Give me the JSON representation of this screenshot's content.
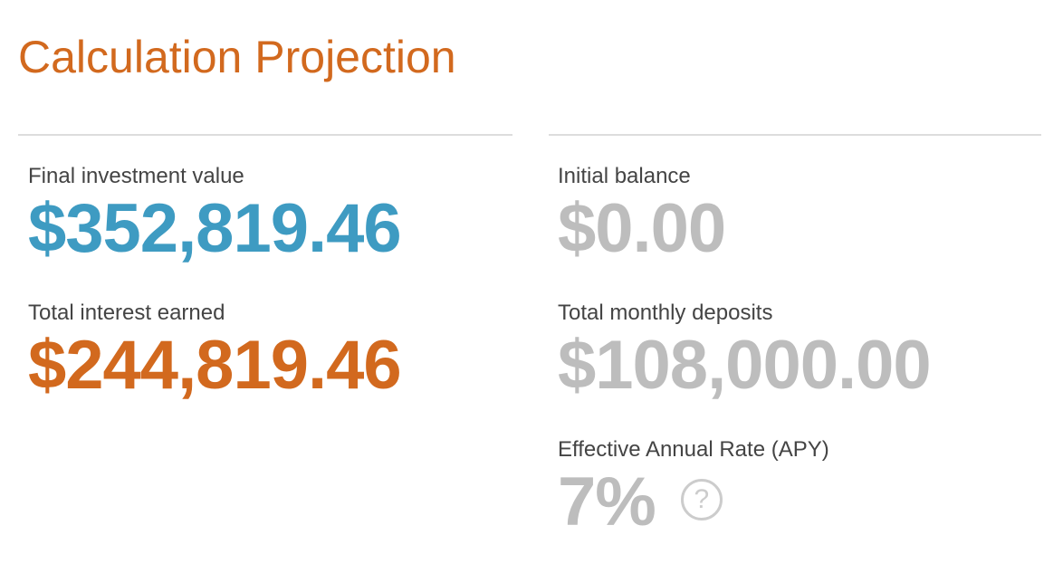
{
  "header": {
    "title": "Calculation Projection"
  },
  "left": [
    {
      "label": "Final investment value",
      "value": "$352,819.46"
    },
    {
      "label": "Total interest earned",
      "value": "$244,819.46"
    }
  ],
  "right": [
    {
      "label": "Initial balance",
      "value": "$0.00"
    },
    {
      "label": "Total monthly deposits",
      "value": "$108,000.00"
    },
    {
      "label": "Effective Annual Rate (APY)",
      "value": "7%"
    }
  ],
  "help_icon": "?"
}
